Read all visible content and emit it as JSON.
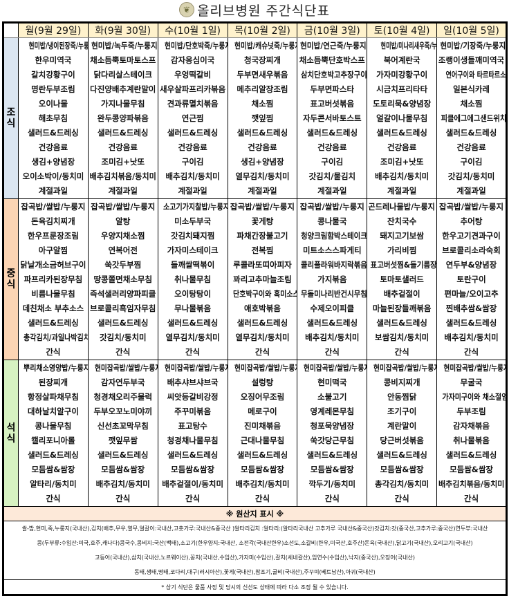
{
  "header": {
    "title": "올리브병원  주간식단표",
    "logo_icon": "olive-branch-icon"
  },
  "days": [
    "월(9월 29일)",
    "화(9월 30일)",
    "수(10월 1일)",
    "목(10월 2일)",
    "금(10월 3일)",
    "토(10월 4일)",
    "일(10월 5일)"
  ],
  "meals": [
    {
      "label": "조\n식",
      "color": "#dce6f1",
      "menus": [
        [
          "현미밥/냉이된장죽/누룽지",
          "한우미역국",
          "갈치강황구이",
          "명란두부조림",
          "오이나물",
          "해초무침",
          "샐러드&드레싱",
          "건강음료",
          "생김+양념장",
          "오이소박이/동치미",
          "계절과일"
        ],
        [
          "현미밥/녹두죽/누룽지",
          "채소듬뿍토마토스프",
          "닭다리살스테이크",
          "다진양배추계란말이",
          "가지나물무침",
          "완두콩양파볶음",
          "샐러드&드레싱",
          "건강음료",
          "조미김+낫또",
          "배추김치볶음/동치미",
          "계절과일"
        ],
        [
          "현미밥/단호박죽/누룽지",
          "감자옹심이국",
          "우엉떡갈비",
          "새우살파프리카볶음",
          "견과류멸치볶음",
          "연근찜",
          "샐러드&드레싱",
          "건강음료",
          "구이김",
          "배추김치/동치미",
          "계절과일"
        ],
        [
          "현미밥/캐슈넛죽/누룽지",
          "청국장찌개",
          "두부면새우볶음",
          "메추리알장조림",
          "채소찜",
          "깻잎찜",
          "샐러드&드레싱",
          "건강음료",
          "생김+양념장",
          "열무김치/동치미",
          "계절과일"
        ],
        [
          "현미밥/연근죽/누룽지",
          "채소듬뿍단호박스프",
          "삼치단호박고추장구이",
          "두부면파스타",
          "표고버섯볶음",
          "자두콘서바토스트",
          "샐러드&드레싱",
          "건강음료",
          "구이김",
          "갓김치/물김치",
          "계절과일"
        ],
        [
          "현미밥/미나리새우죽/누룽지",
          "북어계란국",
          "가자미강황구이",
          "시금치프리타타",
          "도토리묵&양념장",
          "얼갈이나물무침",
          "샐러드&드레싱",
          "건강음료",
          "조미김+낫또",
          "배추김치/동치미",
          "계절과일"
        ],
        [
          "현미밥/기장죽/누룽지",
          "조랭이생들깨미역국",
          "연어구이와 타르타르소스",
          "일본식카레",
          "채소찜",
          "피클에그에그샌드위치",
          "샐러드&드레싱",
          "건강음료",
          "구이김",
          "갓김치/동치미",
          "계절과일"
        ]
      ]
    },
    {
      "label": "중\n식",
      "color": "#fcd5b4",
      "menus": [
        [
          "잡곡밥/쌀밥/누룽지",
          "돈육김치찌개",
          "한우프룬장조림",
          "아구알찜",
          "닭날개소금허브구이",
          "파프리카된장무침",
          "비름나물무침",
          "데친채소 부추소스",
          "샐러드&드레싱",
          "총각김치/과일나박김치",
          "간식"
        ],
        [
          "잡곡밥/쌀밥/누룽지",
          "알탕",
          "우양지채소찜",
          "연복어전",
          "쑥갓두부찜",
          "땅콩쫄면채소무침",
          "즉석샐러리양파피클",
          "브로콜리흑임자무침",
          "샐러드&드레싱",
          "갓김치/동치미",
          "간식"
        ],
        [
          "소고기가지찰밥/누룽지",
          "미소두부국",
          "갓김치돼지찜",
          "가자미스테이크",
          "들깨쌀떡볶이",
          "취나물무침",
          "오이탕탕이",
          "무나물볶음",
          "샐러드&드레싱",
          "열무김치/동치미",
          "간식"
        ],
        [
          "잡곡밥/쌀밥/누룽지",
          "꽃게탕",
          "파채간장불고기",
          "전복찜",
          "루콜라또띠아피자",
          "꽈리고추마늘조림",
          "단호박구이와 흑미소스",
          "애호박볶음",
          "샐러드&드레싱",
          "열무김치/동치미",
          "간식"
        ],
        [
          "잡곡밥/쌀밥/누룽지",
          "콩나물국",
          "청양크림함박스테이크",
          "미트소스스파게티",
          "콜리플라워바지락볶음",
          "가지볶음",
          "무돌미나리반건시무침",
          "수제오이피클",
          "샐러드&드레싱",
          "배추김치/동치미",
          "간식"
        ],
        [
          "곤드레나물밥/누룽지",
          "잔치국수",
          "돼지고기보쌈",
          "가리비찜",
          "표고버섯찜&들기름장",
          "토마토샐러드",
          "배추겉절이",
          "마늘된장들깨볶음",
          "샐러드&드레싱",
          "보쌈김치/동치미",
          "간식"
        ],
        [
          "잡곡밥/쌀밥/누룽지",
          "추어탕",
          "한우고기견과구이",
          "브로콜리소라숙회",
          "연두부&양념장",
          "토란구이",
          "편마늘/오이고추",
          "찐배추쌈&쌈장",
          "샐러드&드레싱",
          "배추김치/동치미",
          "간식"
        ]
      ]
    },
    {
      "label": "석\n식",
      "color": "#d7f2c2",
      "menus": [
        [
          "뿌리채소영양밥/누룽지",
          "된장찌개",
          "항정살파채무침",
          "대하날치알구이",
          "콩나물무침",
          "캘리포니아롤",
          "샐러드&드레싱",
          "모듬쌈&쌈장",
          "알타리/동치미",
          "간식"
        ],
        [
          "현미잡곡밥/쌀밥/누룽지",
          "감자연두부국",
          "청경채오리주물럭",
          "두부오꼬노미야끼",
          "신선초꼬막무침",
          "깻잎무쌈",
          "샐러드&드레싱",
          "모듬쌈&쌈장",
          "배추김치/동치미",
          "간식"
        ],
        [
          "현미잡곡밥/쌀밥/누룽지",
          "배추샤브샤브국",
          "씨앗등갈비강정",
          "주꾸미볶음",
          "표고탕수",
          "청경채나물무침",
          "샐러드&드레싱",
          "모듬쌈&쌈장",
          "배추겉절이/동치미",
          "간식"
        ],
        [
          "현미잡곡밥/쌀밥/누룽지",
          "설렁탕",
          "오징어무조림",
          "메로구이",
          "진미채볶음",
          "근대나물무침",
          "샐러드&드레싱",
          "모듬쌈&쌈장",
          "배추김치/동치미",
          "간식"
        ],
        [
          "현미잡곡밥/쌀밥/누룽지",
          "현미떡국",
          "소불고기",
          "영계레몬무침",
          "청포묵양념장",
          "쑥갓당근무침",
          "샐러드&드레싱",
          "모듬쌈&쌈장",
          "깍두기/동치미",
          "간식"
        ],
        [
          "현미잡곡밥/쌀밥/누룽지",
          "콩비지찌개",
          "안동찜닭",
          "조기구이",
          "계란말이",
          "당근버섯볶음",
          "샐러드&드레싱",
          "모듬쌈&쌈장",
          "총각김치/동치미",
          "간식"
        ],
        [
          "현미잡곡밥/쌀밥/누룽지",
          "무굴국",
          "가자미구이와 채소절임",
          "두부조림",
          "감자채볶음",
          "취나물볶음",
          "샐러드&드레싱",
          "모듬쌈&쌈장",
          "배추김치볶음/동치미",
          "간식"
        ]
      ]
    }
  ],
  "origin": {
    "title": "※ 원산지 표시 ※",
    "lines": [
      "쌀-밥,현미,죽,누룽지(국내산),김치(배추,무우,열무,얼갈이:국내산,고춧가루:국내산&중국산 )알타리김치 :알타리:(알타리국내산 고추가루 국내산&중국산)갓김치:갓(중국산,고추가루:중국산)연두부:국내산",
      "콩(두부류:수입산:미국,호주,캐나다)콩국수,콩비지:국산(백태),소고기(한우양지:국내산, 소전각(국내산한우)소선도,소갈비(한우,미국산,호주산)돈육(국내산),닭고기(국내산),오리고기(국내산)",
      "고등어(국내산),삼치(국내산,노르웨이산),꽁치(국내산,수입산),가자미(수입산),갈치(세네갈산),임연수(수입산),낙지(중국산),오징어(국내산)",
      "동태,생태,명태,코다리,대구(러시아산),꽃게(국내산),참조기,굴비(국내산),주꾸미(베트남산),아귀(국내산)"
    ],
    "footer": "* 상기 식단은 물품 사정 및 당시의 신선도 상태에 따라 다소 조정 될 수 있습니다."
  }
}
